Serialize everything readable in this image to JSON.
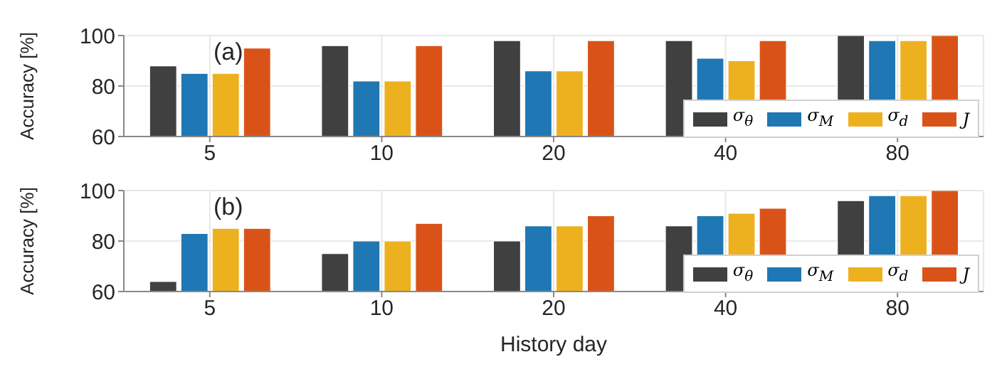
{
  "chart_data": [
    {
      "type": "bar",
      "ylabel": "Accuracy [%]",
      "categories": [
        "5",
        "10",
        "20",
        "40",
        "80"
      ],
      "ylim": [
        60,
        100
      ],
      "yticks": [
        60,
        80,
        100
      ],
      "grid": true,
      "legend": "bottom right",
      "annotations": [
        "(a)"
      ],
      "series": [
        {
          "name": "σ$_{θ}$",
          "color": "#404040",
          "values": [
            88,
            96,
            98,
            98,
            100
          ]
        },
        {
          "name": "σ$_{M}$",
          "color": "#1f77b4",
          "values": [
            85,
            82,
            86,
            91,
            98
          ]
        },
        {
          "name": "σ$_{d}$",
          "color": "#edb120",
          "values": [
            85,
            82,
            86,
            90,
            98
          ]
        },
        {
          "name": "J",
          "color": "#d95319",
          "values": [
            95,
            96,
            98,
            98,
            100
          ]
        }
      ]
    },
    {
      "type": "bar",
      "ylabel": "Accuracy [%]",
      "xlabel": "History day",
      "categories": [
        "5",
        "10",
        "20",
        "40",
        "80"
      ],
      "ylim": [
        60,
        100
      ],
      "yticks": [
        60,
        80,
        100
      ],
      "grid": true,
      "legend": "bottom right",
      "annotations": [
        "(b)"
      ],
      "series": [
        {
          "name": "σ$_{θ}$",
          "color": "#404040",
          "values": [
            64,
            75,
            80,
            86,
            96
          ]
        },
        {
          "name": "σ$_{M}$",
          "color": "#1f77b4",
          "values": [
            83,
            80,
            86,
            90,
            98
          ]
        },
        {
          "name": "σ$_{d}$",
          "color": "#edb120",
          "values": [
            85,
            80,
            86,
            91,
            98
          ]
        },
        {
          "name": "J",
          "color": "#d95319",
          "values": [
            85,
            87,
            90,
            93,
            100
          ]
        }
      ]
    }
  ]
}
